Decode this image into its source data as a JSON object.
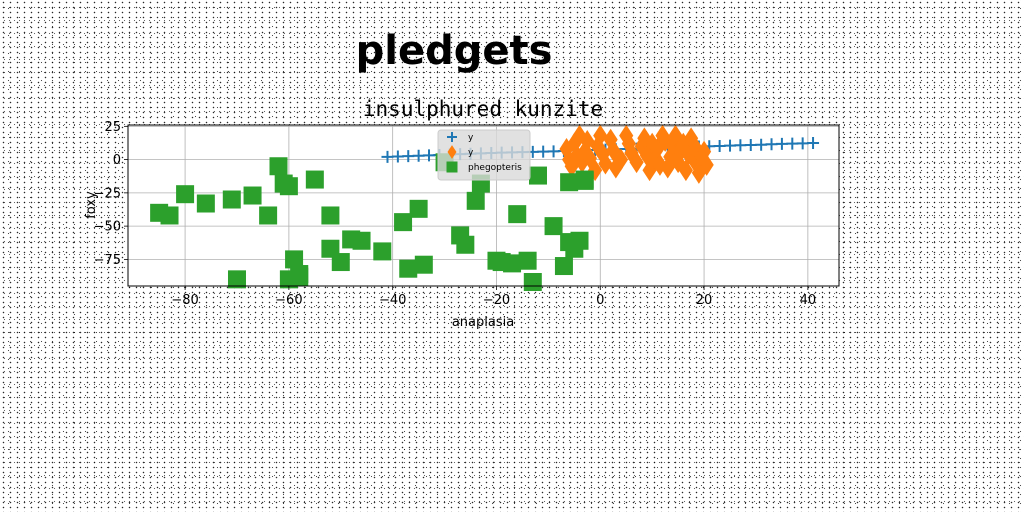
{
  "chart_data": {
    "type": "scatter",
    "suptitle": "pledgets",
    "title": "insulphured kunzite",
    "xlabel": "anaplasia",
    "ylabel": "foxy",
    "xlim": [
      -91,
      46
    ],
    "ylim": [
      -95,
      26
    ],
    "xticks": [
      -80,
      -60,
      -40,
      -20,
      0,
      20,
      40
    ],
    "yticks": [
      25,
      0,
      -25,
      -50,
      -75
    ],
    "grid": true,
    "legend_position": "upper-center",
    "series": [
      {
        "name": "y",
        "marker": "plus",
        "color": "#1f77b4",
        "line": true,
        "x": [
          -41,
          -39,
          -37,
          -35,
          -33,
          -31,
          -29,
          -27,
          -25,
          -23,
          -21,
          -19,
          -17,
          -15,
          -13,
          -11,
          -9,
          -7,
          -5,
          -3,
          -1,
          1,
          3,
          5,
          7,
          9,
          11,
          13,
          15,
          17,
          19,
          21,
          23,
          25,
          27,
          29,
          31,
          33,
          35,
          37,
          39,
          41
        ],
        "y": [
          2,
          2.3,
          2.6,
          2.9,
          3.2,
          3.5,
          3.8,
          4.1,
          4.4,
          4.7,
          5,
          5.2,
          5.4,
          5.6,
          5.8,
          6,
          6.2,
          6.5,
          6.8,
          7,
          7.2,
          7.5,
          7.8,
          8,
          8.2,
          8.5,
          8.8,
          9,
          9.2,
          9.5,
          9.8,
          10,
          10.2,
          10.5,
          10.8,
          11,
          11.2,
          11.5,
          11.8,
          12,
          12.2,
          12.5
        ]
      },
      {
        "name": "y",
        "marker": "diamond",
        "color": "#ff7f0e",
        "line": false,
        "x": [
          -6.5,
          -6,
          -5.5,
          -5,
          -4.5,
          -4,
          -3.5,
          -3,
          -2.5,
          -2,
          -1,
          -0.5,
          0,
          0.5,
          1,
          2,
          2.5,
          3,
          4,
          5,
          5.5,
          6,
          7,
          8,
          8.5,
          9,
          9.5,
          10,
          10.5,
          11,
          11.5,
          12,
          12.5,
          13,
          13.5,
          14,
          14.5,
          15,
          15.5,
          16,
          16.5,
          17,
          17.5,
          18,
          18.5,
          19,
          19.5,
          20,
          20.5
        ],
        "y": [
          8,
          0,
          -5,
          12,
          3,
          18,
          -2,
          6,
          14,
          1,
          -8,
          10,
          18,
          4,
          -3,
          15,
          7,
          -6,
          0,
          18,
          12,
          5,
          -2,
          10,
          16,
          3,
          -8,
          12,
          0,
          8,
          -4,
          18,
          14,
          -6,
          2,
          10,
          18,
          -2,
          6,
          12,
          -8,
          4,
          16,
          0,
          8,
          -10,
          2,
          6,
          -4
        ]
      },
      {
        "name": "phegopteris",
        "marker": "square",
        "color": "#2ca02c",
        "line": false,
        "x": [
          -85,
          -83,
          -80,
          -76,
          -71,
          -70,
          -67,
          -64,
          -62,
          -61,
          -60,
          -58,
          -55,
          -59,
          -60,
          -58,
          -52,
          -50,
          -52,
          -48,
          -46,
          -42,
          -38,
          -37,
          -35,
          -34,
          -30,
          -27,
          -26,
          -24,
          -23,
          -20,
          -19,
          -17,
          -16,
          -14,
          -13,
          -12,
          -9,
          -7,
          -6,
          -5,
          -4,
          -3,
          -6,
          -3
        ],
        "y": [
          -40,
          -42,
          -26,
          -33,
          -30,
          -90,
          -27,
          -42,
          -5,
          -18,
          -20,
          -88,
          -15,
          -75,
          -90,
          -86,
          -67,
          -77,
          -42,
          -60,
          -61,
          -69,
          -47,
          -82,
          -37,
          -79,
          -2,
          -57,
          -64,
          -31,
          -18,
          -76,
          -77,
          -78,
          -41,
          -76,
          -92,
          -12,
          -50,
          -80,
          -17,
          -67,
          -61,
          -15,
          -62,
          -16
        ]
      }
    ]
  }
}
